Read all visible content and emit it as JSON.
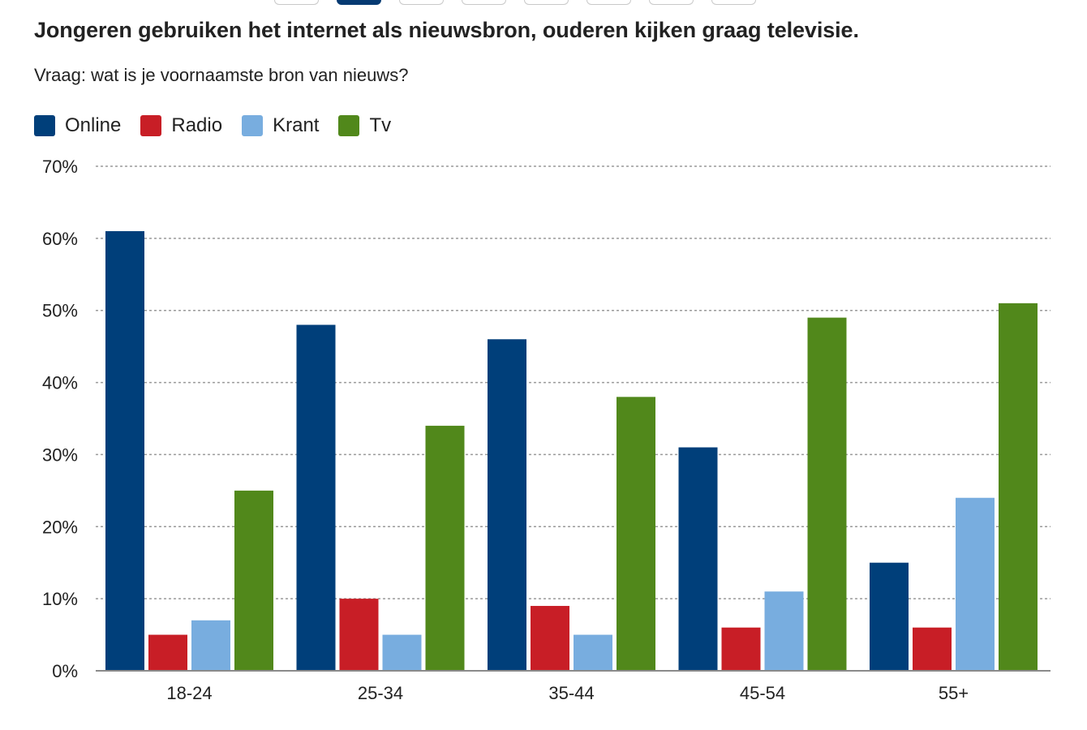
{
  "header": {
    "title": "Jongeren gebruiken het internet als nieuwsbron, ouderen kijken graag televisie.",
    "subtitle": "Vraag: wat is je voornaamste bron van nieuws?",
    "tab_count": 8,
    "active_tab": 1
  },
  "chart_data": {
    "type": "bar",
    "title": "Jongeren gebruiken het internet als nieuwsbron, ouderen kijken graag televisie.",
    "subtitle": "Vraag: wat is je voornaamste bron van nieuws?",
    "categories": [
      "18-24",
      "25-34",
      "35-44",
      "45-54",
      "55+"
    ],
    "series": [
      {
        "name": "Online",
        "color": "#003f7a",
        "values": [
          61,
          48,
          46,
          31,
          15
        ]
      },
      {
        "name": "Radio",
        "color": "#c81e26",
        "values": [
          5,
          10,
          9,
          6,
          6
        ]
      },
      {
        "name": "Krant",
        "color": "#78addf",
        "values": [
          7,
          5,
          5,
          11,
          24
        ]
      },
      {
        "name": "Tv",
        "color": "#51881b",
        "values": [
          25,
          34,
          38,
          49,
          51
        ]
      }
    ],
    "ylim": [
      0,
      70
    ],
    "yticks": [
      0,
      10,
      20,
      30,
      40,
      50,
      60,
      70
    ],
    "ytick_labels": [
      "0%",
      "10%",
      "20%",
      "30%",
      "40%",
      "50%",
      "60%",
      "70%"
    ],
    "xlabel": "",
    "ylabel": "",
    "grid": true,
    "legend_position": "top-left"
  }
}
